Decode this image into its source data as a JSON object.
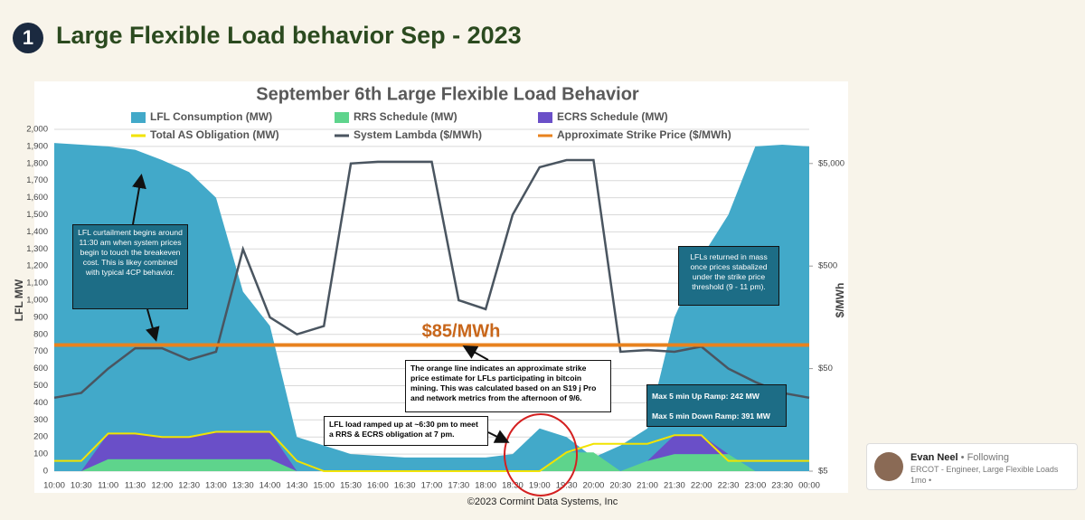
{
  "header": {
    "badge": "1",
    "title": "Large Flexible Load behavior Sep - 2023"
  },
  "footer": "©2023 Cormint Data Systems, Inc",
  "profile": {
    "name": "Evan Neel",
    "status": "• Following",
    "headline": "ERCOT - Engineer, Large Flexible Loads",
    "time": "1mo •"
  },
  "chart_data": {
    "type": "combo",
    "title": "September 6th Large Flexible Load Behavior",
    "y_label": "LFL MW",
    "y2_label": "$/MWh",
    "grid": true,
    "y2_scale": "log",
    "categories": [
      "10:00",
      "10:30",
      "11:00",
      "11:30",
      "12:00",
      "12:30",
      "13:00",
      "13:30",
      "14:00",
      "14:30",
      "15:00",
      "15:30",
      "16:00",
      "16:30",
      "17:00",
      "17:30",
      "18:00",
      "18:30",
      "19:00",
      "19:30",
      "20:00",
      "20:30",
      "21:00",
      "21:30",
      "22:00",
      "22:30",
      "23:00",
      "23:30",
      "00:00"
    ],
    "ylim": [
      0,
      2000
    ],
    "yticks": [
      0,
      100,
      200,
      300,
      400,
      500,
      600,
      700,
      800,
      900,
      {
        "value": 1000,
        "label": "1,000"
      },
      {
        "value": 1100,
        "label": "1,100"
      },
      {
        "value": 1200,
        "label": "1,200"
      },
      {
        "value": 1300,
        "label": "1,300"
      },
      {
        "value": 1400,
        "label": "1,400"
      },
      {
        "value": 1500,
        "label": "1,500"
      },
      {
        "value": 1600,
        "label": "1,600"
      },
      {
        "value": 1700,
        "label": "1,700"
      },
      {
        "value": 1800,
        "label": "1,800"
      },
      {
        "value": 1900,
        "label": "1,900"
      },
      {
        "value": 2000,
        "label": "2,000"
      }
    ],
    "y2lim": [
      5,
      10772
    ],
    "y2ticks": [
      {
        "value": 5,
        "label": "$5"
      },
      {
        "value": 50,
        "label": "$50"
      },
      {
        "value": 500,
        "label": "$500"
      },
      {
        "value": 5000,
        "label": "$5,000"
      }
    ],
    "series": [
      {
        "name": "LFL Consumption (MW)",
        "type": "area",
        "color": "#42a9c9",
        "values": [
          1920,
          1910,
          1900,
          1880,
          1820,
          1750,
          1600,
          1050,
          850,
          200,
          150,
          100,
          90,
          80,
          80,
          80,
          80,
          100,
          250,
          200,
          80,
          150,
          250,
          900,
          1250,
          1500,
          1900,
          1910,
          1900
        ]
      },
      {
        "name": "RRS Schedule (MW)",
        "type": "stacked_area",
        "color": "#5ed48c",
        "values": [
          0,
          0,
          70,
          70,
          70,
          70,
          70,
          70,
          70,
          0,
          0,
          0,
          0,
          0,
          0,
          0,
          0,
          0,
          0,
          110,
          110,
          0,
          60,
          100,
          100,
          100,
          0,
          0,
          0
        ]
      },
      {
        "name": "ECRS Schedule (MW)",
        "type": "stacked_area",
        "color": "#6a4fc8",
        "values": [
          0,
          0,
          150,
          150,
          130,
          130,
          160,
          160,
          160,
          0,
          0,
          0,
          0,
          0,
          0,
          0,
          0,
          0,
          0,
          0,
          0,
          0,
          0,
          110,
          110,
          0,
          0,
          0,
          0
        ]
      },
      {
        "name": "Total AS Obligation (MW)",
        "type": "line",
        "color": "#f2e300",
        "values": [
          60,
          60,
          220,
          220,
          200,
          200,
          230,
          230,
          230,
          60,
          0,
          0,
          0,
          0,
          0,
          0,
          0,
          0,
          0,
          110,
          160,
          160,
          160,
          210,
          210,
          60,
          60,
          60,
          60
        ]
      },
      {
        "name": "System Lambda ($/MWh)",
        "type": "line",
        "axis": "y2",
        "color": "#4a5560",
        "values": [
          26,
          29,
          50,
          79,
          79,
          61,
          73,
          730,
          158,
          108,
          130,
          5000,
          5200,
          5200,
          5200,
          232,
          190,
          1580,
          4600,
          5400,
          5400,
          73,
          76,
          73,
          82,
          50,
          37,
          29,
          26
        ]
      }
    ],
    "hlines": [
      {
        "name": "Approximate Strike Price ($/MWh)",
        "axis": "y2",
        "color": "#e8821e",
        "value": 85,
        "label": "$85/MWh"
      }
    ],
    "annotations": [
      "LFL curtailment begins around 11:30 am when system prices begin to touch the breakeven cost. This is likey combined with typical 4CP behavior.",
      "LFLs returned in mass once prices stabalized under the strike price threshold (9 - 11 pm).",
      "The orange line indicates an approximate strike price estimate for LFLs participating in bitcoin mining. This was calculated based on an S19 j Pro and network metrics from the afternoon of 9/6.",
      "LFL load ramped up at ~6:30 pm to meet a RRS & ECRS obligation at 7 pm.",
      "Max 5 min Up Ramp: 242 MW",
      "Max 5 min Down Ramp: 391 MW"
    ]
  }
}
